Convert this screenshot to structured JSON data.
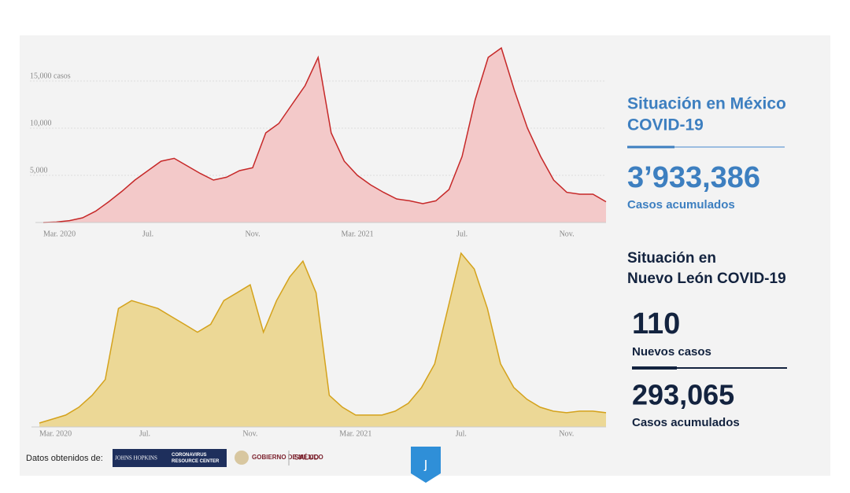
{
  "chart_data": [
    {
      "type": "area",
      "color": "#c62828",
      "fill": "#f3c9c9",
      "categories": [
        "Mar. 2020",
        null,
        null,
        null,
        null,
        null,
        null,
        null,
        "Jul.",
        null,
        null,
        null,
        null,
        null,
        null,
        null,
        "Nov.",
        null,
        null,
        null,
        null,
        null,
        null,
        null,
        "Mar. 2021",
        null,
        null,
        null,
        null,
        null,
        null,
        null,
        "Jul.",
        null,
        null,
        null,
        null,
        null,
        null,
        null,
        "Nov.",
        null,
        null,
        null
      ],
      "values": [
        0,
        50,
        200,
        500,
        1200,
        2200,
        3300,
        4500,
        5500,
        6500,
        6800,
        6000,
        5200,
        4500,
        4800,
        5500,
        5800,
        9500,
        10500,
        12500,
        14500,
        17500,
        9500,
        6500,
        5000,
        4000,
        3200,
        2500,
        2300,
        2000,
        2300,
        3500,
        7000,
        13000,
        17500,
        18500,
        14000,
        10000,
        7000,
        4500,
        3200,
        3000,
        3000,
        2200
      ],
      "ylim": [
        0,
        19000
      ],
      "yticks": [
        {
          "value": 5000,
          "label": "5,000"
        },
        {
          "value": 10000,
          "label": "10,000"
        },
        {
          "value": 15000,
          "label": "15,000 casos"
        }
      ],
      "grid": true
    },
    {
      "type": "area",
      "color": "#d4a21c",
      "fill": "#ecd896",
      "categories": [
        "Mar. 2020",
        null,
        null,
        null,
        null,
        null,
        null,
        null,
        "Jul.",
        null,
        null,
        null,
        null,
        null,
        null,
        null,
        "Nov.",
        null,
        null,
        null,
        null,
        null,
        null,
        null,
        "Mar. 2021",
        null,
        null,
        null,
        null,
        null,
        null,
        null,
        "Jul.",
        null,
        null,
        null,
        null,
        null,
        null,
        null,
        "Nov.",
        null,
        null,
        null
      ],
      "values": [
        5,
        10,
        15,
        25,
        40,
        60,
        150,
        160,
        155,
        150,
        140,
        130,
        120,
        130,
        160,
        170,
        180,
        120,
        160,
        190,
        210,
        170,
        40,
        25,
        15,
        15,
        15,
        20,
        30,
        50,
        80,
        150,
        220,
        200,
        150,
        80,
        50,
        35,
        25,
        20,
        18,
        20,
        20,
        18
      ],
      "ylim": [
        0,
        230
      ],
      "grid": false
    }
  ],
  "panel": {
    "mexico": {
      "title_1": "Situación en México",
      "title_2": "COVID-19",
      "total": "3’933,386",
      "total_label": "Casos acumulados"
    },
    "nuevo_leon": {
      "title_1": "Situación en",
      "title_2": "Nuevo León COVID-19",
      "new": "110",
      "new_label": "Nuevos casos",
      "total": "293,065",
      "total_label": "Casos acumulados"
    }
  },
  "footer": {
    "source": "Datos obtenidos de:",
    "logo_1a": "JOHNS HOPKINS",
    "logo_1b": "CORONAVIRUS RESOURCE CENTER",
    "logo_2": "GOBIERNO DE MÉXICO",
    "logo_3": "SALUD"
  }
}
